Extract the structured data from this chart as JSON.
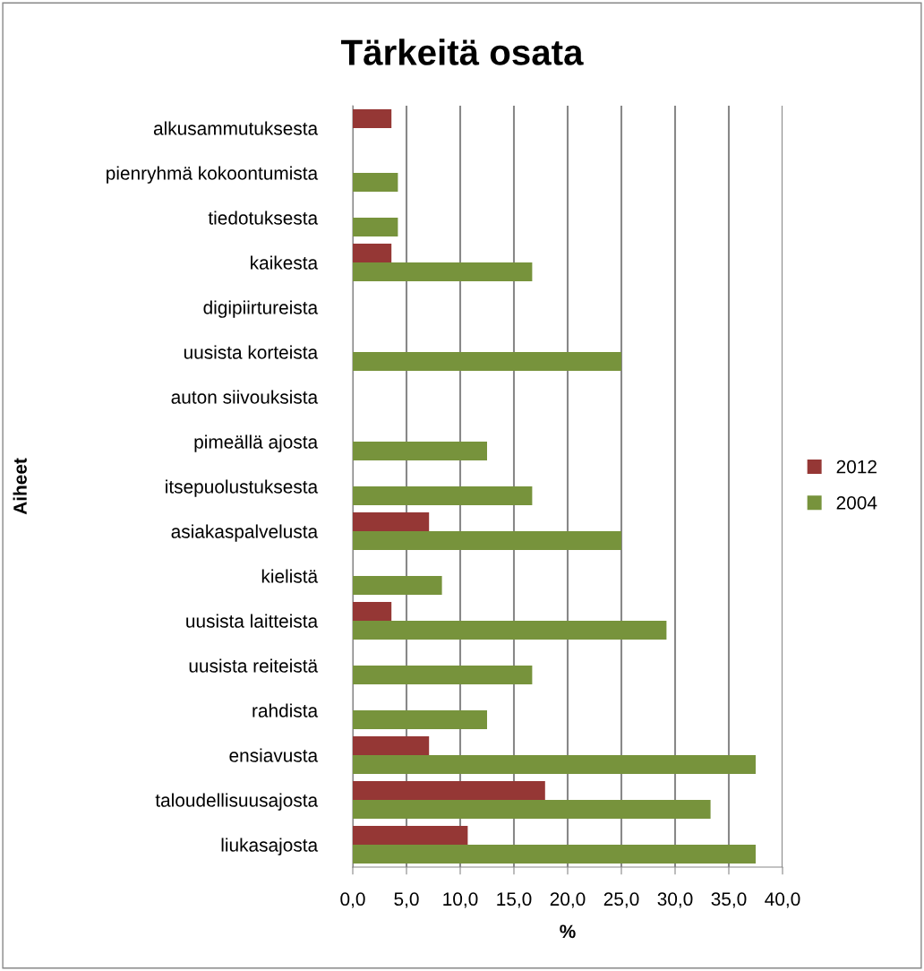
{
  "chart_data": {
    "type": "bar",
    "orientation": "horizontal",
    "title": "Tärkeitä osata",
    "xlabel": "%",
    "ylabel": "Aiheet",
    "categories": [
      "alkusammutuksesta",
      "pienryhmä kokoontumista",
      "tiedotuksesta",
      "kaikesta",
      "digipiirtureista",
      "uusista korteista",
      "auton siivouksista",
      "pimeällä ajosta",
      "itsepuolustuksesta",
      "asiakaspalvelusta",
      "kielistä",
      "uusista laitteista",
      "uusista reiteistä",
      "rahdista",
      "ensiavusta",
      "taloudellisuusajosta",
      "liukasajosta"
    ],
    "series": [
      {
        "name": "2012",
        "color": "#953735",
        "values": [
          3.6,
          null,
          null,
          3.6,
          null,
          null,
          null,
          null,
          null,
          7.1,
          null,
          3.6,
          null,
          null,
          7.1,
          17.9,
          10.7
        ]
      },
      {
        "name": "2004",
        "color": "#77933c",
        "values": [
          null,
          4.2,
          4.2,
          16.7,
          null,
          25.0,
          null,
          12.5,
          16.7,
          25.0,
          8.3,
          29.2,
          16.7,
          12.5,
          37.5,
          33.3,
          37.5
        ]
      }
    ],
    "xlim": [
      0,
      40
    ],
    "xticks": [
      {
        "value": 0,
        "label": "0,0"
      },
      {
        "value": 5,
        "label": "5,0"
      },
      {
        "value": 10,
        "label": "10,0"
      },
      {
        "value": 15,
        "label": "15,0"
      },
      {
        "value": 20,
        "label": "20,0"
      },
      {
        "value": 25,
        "label": "25,0"
      },
      {
        "value": 30,
        "label": "30,0"
      },
      {
        "value": 35,
        "label": "35,0"
      },
      {
        "value": 40,
        "label": "40,0"
      }
    ],
    "grid": "x",
    "legend": "right"
  }
}
